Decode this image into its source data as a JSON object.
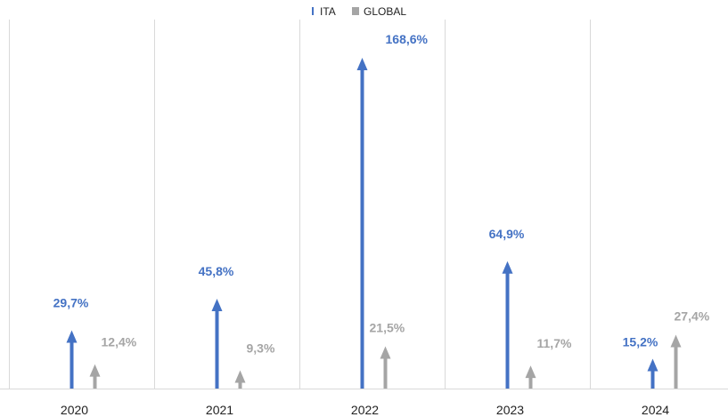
{
  "chart_data": {
    "type": "bar",
    "categories": [
      "2020",
      "2021",
      "2022",
      "2023",
      "2024"
    ],
    "series": [
      {
        "name": "ITA",
        "values": [
          29.7,
          45.8,
          168.6,
          64.9,
          15.2
        ],
        "labels": [
          "29,7%",
          "45,8%",
          "168,6%",
          "64,9%",
          "15,2%"
        ],
        "color": "#4472C4"
      },
      {
        "name": "GLOBAL",
        "values": [
          12.4,
          9.3,
          21.5,
          11.7,
          27.4
        ],
        "labels": [
          "12,4%",
          "9,3%",
          "21,5%",
          "11,7%",
          "27,4%"
        ],
        "color": "#A5A5A5"
      }
    ],
    "ylim": [
      0,
      170
    ],
    "grid": "vertical separators",
    "legend": "top-center",
    "marker": "arrow"
  }
}
